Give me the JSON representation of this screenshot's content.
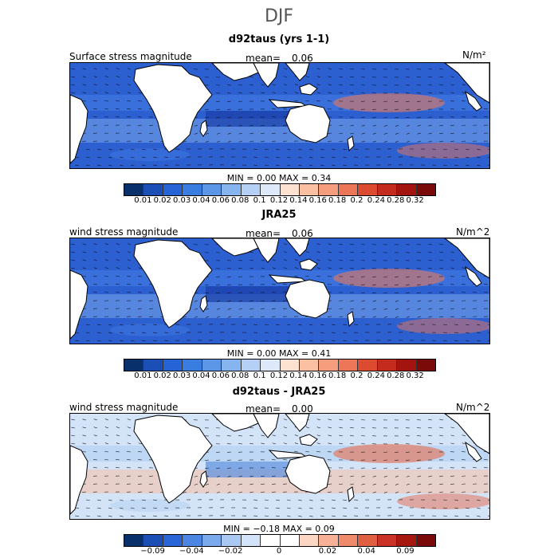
{
  "figure_title": "DJF",
  "panels": [
    {
      "title": "d92taus (yrs 1-1)",
      "left_label": "Surface stress magnitude",
      "mean_label": "mean=",
      "mean_value": "0.06",
      "units": "N/m²",
      "min_max": "MIN =    0.00  MAX =    0.34"
    },
    {
      "title": "JRA25",
      "left_label": "wind stress magnitude",
      "mean_label": "mean=",
      "mean_value": "0.06",
      "units": "N/m^2",
      "min_max": "MIN =    0.00  MAX =    0.41"
    },
    {
      "title": "d92taus - JRA25",
      "left_label": "wind stress magnitude",
      "mean_label": "mean=",
      "mean_value": "0.00",
      "units": "N/m^2",
      "min_max": "MIN =  −0.18  MAX =    0.09"
    }
  ],
  "colorbar_abs": {
    "colors": [
      "#08306b",
      "#1c4fb5",
      "#2464d6",
      "#3a7de0",
      "#5b97e6",
      "#86b4ee",
      "#b4d0f4",
      "#dde9f8",
      "#fde2d2",
      "#fbc0a2",
      "#f59d7c",
      "#ec7658",
      "#dd4a32",
      "#c52b1c",
      "#a3140f",
      "#7a0a08"
    ],
    "labels": [
      "0.01",
      "0.02",
      "0.03",
      "0.04",
      "0.06",
      "0.08",
      "0.1",
      "0.12",
      "0.14",
      "0.16",
      "0.18",
      "0.2",
      "0.24",
      "0.28",
      "0.32"
    ]
  },
  "colorbar_diff": {
    "colors": [
      "#08306b",
      "#1c4fb5",
      "#2a66d6",
      "#4a86e2",
      "#7aa9ec",
      "#a9c8f2",
      "#d3e3f8",
      "#ffffff",
      "#ffffff",
      "#fbd6c2",
      "#f7b196",
      "#ef8a6a",
      "#e05e42",
      "#c93224",
      "#a5170f",
      "#7a0a08"
    ],
    "labels": [
      "−0.09",
      "−0.04",
      "−0.02",
      "0",
      "0.02",
      "0.04",
      "0.09"
    ],
    "label_positions": [
      1.5,
      3.5,
      5.5,
      8,
      10.5,
      12.5,
      14.5
    ]
  },
  "chart_data": [
    {
      "type": "heatmap",
      "title": "d92taus (yrs 1-1)",
      "field": "Surface stress magnitude",
      "units": "N/m²",
      "mean": 0.06,
      "min": 0.0,
      "max": 0.34,
      "levels": [
        0.01,
        0.02,
        0.03,
        0.04,
        0.06,
        0.08,
        0.1,
        0.12,
        0.14,
        0.16,
        0.18,
        0.2,
        0.24,
        0.28,
        0.32
      ],
      "vectors": true
    },
    {
      "type": "heatmap",
      "title": "JRA25",
      "field": "wind stress magnitude",
      "units": "N/m^2",
      "mean": 0.06,
      "min": 0.0,
      "max": 0.41,
      "levels": [
        0.01,
        0.02,
        0.03,
        0.04,
        0.06,
        0.08,
        0.1,
        0.12,
        0.14,
        0.16,
        0.18,
        0.2,
        0.24,
        0.28,
        0.32
      ],
      "vectors": true
    },
    {
      "type": "heatmap",
      "title": "d92taus - JRA25",
      "field": "wind stress magnitude",
      "units": "N/m^2",
      "mean": 0.0,
      "min": -0.18,
      "max": 0.09,
      "levels": [
        -0.09,
        -0.04,
        -0.02,
        0,
        0.02,
        0.04,
        0.09
      ],
      "vectors": true
    }
  ]
}
